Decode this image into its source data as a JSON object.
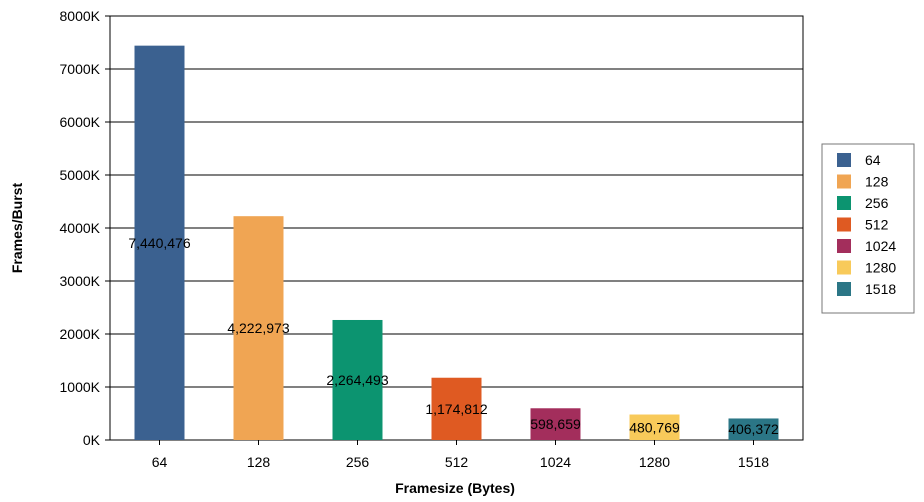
{
  "chart_data": {
    "type": "bar",
    "categories": [
      "64",
      "128",
      "256",
      "512",
      "1024",
      "1280",
      "1518"
    ],
    "values": [
      7440476,
      4222973,
      2264493,
      1174812,
      598659,
      480769,
      406372
    ],
    "value_labels": [
      "7,440,476",
      "4,222,973",
      "2,264,493",
      "1,174,812",
      "598,659",
      "480,769",
      "406,372"
    ],
    "colors": [
      "#3b6190",
      "#f0a553",
      "#0c9470",
      "#df5a22",
      "#a32e5c",
      "#f8ca5a",
      "#2b7686"
    ],
    "title": "",
    "xlabel": "Framesize (Bytes)",
    "ylabel": "Frames/Burst",
    "ylim": [
      0,
      8000000
    ],
    "yticks": [
      0,
      1000000,
      2000000,
      3000000,
      4000000,
      5000000,
      6000000,
      7000000,
      8000000
    ],
    "ytick_labels": [
      "0K",
      "1000K",
      "2000K",
      "3000K",
      "4000K",
      "5000K",
      "6000K",
      "7000K",
      "8000K"
    ],
    "grid": true,
    "legend": {
      "placement": "right",
      "entries": [
        "64",
        "128",
        "256",
        "512",
        "1024",
        "1280",
        "1518"
      ]
    }
  }
}
